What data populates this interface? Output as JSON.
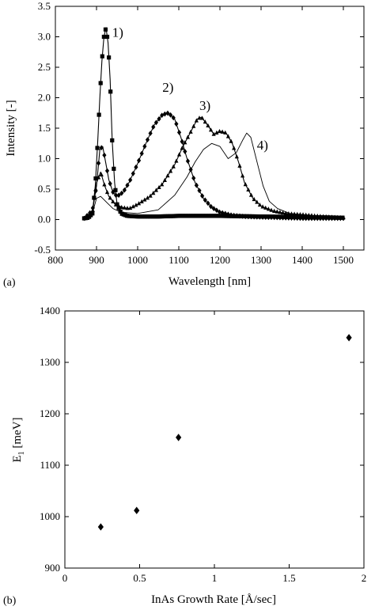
{
  "chart_data": [
    {
      "type": "line",
      "panel_label": "(a)",
      "xlabel": "Wavelength [nm]",
      "ylabel": "Intensity [-]",
      "xlim": [
        800,
        1550
      ],
      "ylim": [
        -0.5,
        3.5
      ],
      "x_ticks": [
        800,
        900,
        1000,
        1100,
        1200,
        1300,
        1400,
        1500
      ],
      "y_ticks": [
        -0.5,
        0.0,
        0.5,
        1.0,
        1.5,
        2.0,
        2.5,
        3.0,
        3.5
      ],
      "x_tick_labels": [
        "800",
        "900",
        "1000",
        "1100",
        "1200",
        "1300",
        "1400",
        "1500"
      ],
      "y_tick_labels": [
        "-0.5",
        "0.0",
        "0.5",
        "1.0",
        "1.5",
        "2.0",
        "2.5",
        "3.0",
        "3.5"
      ],
      "grid": false,
      "series": [
        {
          "name": "1)",
          "marker": "square",
          "x": [
            870,
            880,
            890,
            897,
            903,
            908,
            913,
            918,
            923,
            928,
            933,
            938,
            944,
            950,
            960,
            975,
            1000,
            1050,
            1100,
            1200,
            1300,
            1400,
            1500
          ],
          "y": [
            0.02,
            0.03,
            0.1,
            0.55,
            1.3,
            2.0,
            2.6,
            3.0,
            3.15,
            2.9,
            2.3,
            1.3,
            0.6,
            0.25,
            0.1,
            0.06,
            0.05,
            0.05,
            0.06,
            0.06,
            0.05,
            0.04,
            0.03
          ]
        },
        {
          "name": "2)",
          "marker": "diamond",
          "x": [
            870,
            890,
            900,
            908,
            915,
            922,
            930,
            940,
            950,
            965,
            980,
            1000,
            1020,
            1040,
            1060,
            1075,
            1090,
            1105,
            1120,
            1140,
            1160,
            1180,
            1200,
            1230,
            1260,
            1300,
            1350,
            1400,
            1450,
            1500
          ],
          "y": [
            0.02,
            0.15,
            0.55,
            1.15,
            1.2,
            0.95,
            0.65,
            0.45,
            0.38,
            0.45,
            0.62,
            0.92,
            1.25,
            1.55,
            1.72,
            1.75,
            1.65,
            1.35,
            1.0,
            0.6,
            0.35,
            0.2,
            0.12,
            0.07,
            0.05,
            0.04,
            0.03,
            0.02,
            0.02,
            0.02
          ]
        },
        {
          "name": "3)",
          "marker": "triangle",
          "x": [
            870,
            890,
            900,
            910,
            920,
            930,
            945,
            960,
            980,
            1000,
            1030,
            1060,
            1090,
            1110,
            1130,
            1145,
            1155,
            1170,
            1185,
            1200,
            1215,
            1230,
            1245,
            1260,
            1280,
            1300,
            1330,
            1360,
            1400,
            1450,
            1500
          ],
          "y": [
            0.02,
            0.1,
            0.6,
            0.78,
            0.55,
            0.38,
            0.25,
            0.2,
            0.18,
            0.25,
            0.38,
            0.58,
            0.9,
            1.2,
            1.45,
            1.65,
            1.68,
            1.55,
            1.4,
            1.45,
            1.42,
            1.25,
            0.95,
            0.6,
            0.35,
            0.22,
            0.14,
            0.1,
            0.08,
            0.05,
            0.03
          ]
        },
        {
          "name": "4)",
          "marker": "none",
          "x": [
            870,
            890,
            900,
            910,
            925,
            940,
            960,
            1000,
            1050,
            1090,
            1120,
            1140,
            1160,
            1180,
            1200,
            1220,
            1240,
            1255,
            1265,
            1275,
            1290,
            1305,
            1320,
            1340,
            1370,
            1400,
            1450,
            1500
          ],
          "y": [
            0.02,
            0.1,
            0.35,
            0.38,
            0.28,
            0.18,
            0.12,
            0.1,
            0.16,
            0.4,
            0.7,
            0.95,
            1.15,
            1.25,
            1.2,
            1.0,
            1.1,
            1.3,
            1.42,
            1.35,
            0.95,
            0.55,
            0.3,
            0.18,
            0.1,
            0.08,
            0.05,
            0.03
          ]
        }
      ]
    },
    {
      "type": "scatter",
      "panel_label": "(b)",
      "xlabel": "InAs Growth Rate [Å/sec]",
      "ylabel_main": "E",
      "ylabel_sub": "1",
      "ylabel_units": " [meV]",
      "xlim": [
        0,
        2
      ],
      "ylim": [
        900,
        1400
      ],
      "x_ticks": [
        0,
        0.5,
        1,
        1.5,
        2
      ],
      "y_ticks": [
        900,
        1000,
        1100,
        1200,
        1300,
        1400
      ],
      "x_tick_labels": [
        "0",
        "0.5",
        "1",
        "1.5",
        "2"
      ],
      "y_tick_labels": [
        "900",
        "1000",
        "1100",
        "1200",
        "1300",
        "1400"
      ],
      "grid": false,
      "series": [
        {
          "marker": "diamond",
          "x": [
            0.24,
            0.48,
            0.76,
            1.9
          ],
          "y": [
            980,
            1012,
            1154,
            1348
          ]
        }
      ]
    }
  ]
}
